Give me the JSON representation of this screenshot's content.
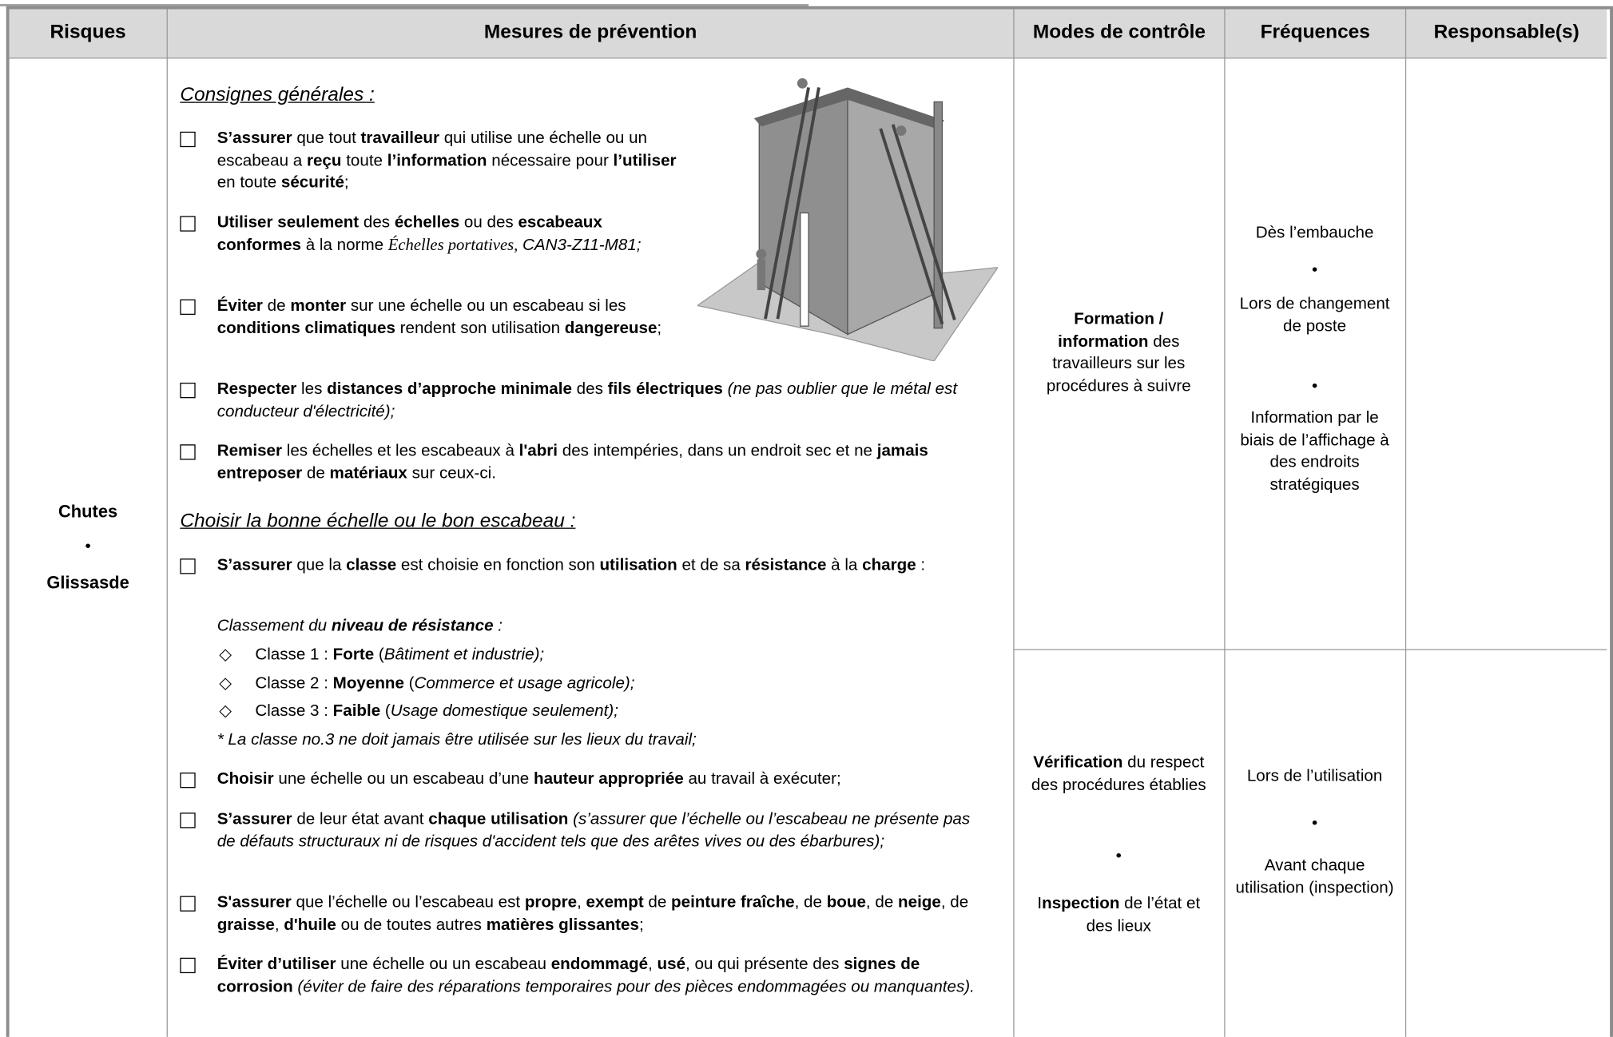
{
  "header": {
    "columns": [
      "Risques",
      "Mesures de prévention",
      "Modes de contrôle",
      "Fréquences",
      "Responsable(s)"
    ]
  },
  "risks": [
    "Chutes",
    "Glissasde"
  ],
  "measures": {
    "sections": [
      {
        "heading": "Consignes générales :",
        "items": [
          {
            "runs": [
              {
                "text": "S’assurer",
                "bold": true
              },
              {
                "text": " que tout "
              },
              {
                "text": "travailleur",
                "bold": true
              },
              {
                "text": " qui utilise une échelle ou un escabeau a "
              },
              {
                "text": "reçu",
                "bold": true
              },
              {
                "text": " toute "
              },
              {
                "text": "l’information",
                "bold": true
              },
              {
                "text": " nécessaire pour "
              },
              {
                "text": "l’utiliser",
                "bold": true
              },
              {
                "text": " en toute "
              },
              {
                "text": "sécurité",
                "bold": true
              },
              {
                "text": ";"
              }
            ]
          },
          {
            "runs": [
              {
                "text": "Utiliser seulement",
                "bold": true
              },
              {
                "text": " des "
              },
              {
                "text": "échelles",
                "bold": true
              },
              {
                "text": " ou des "
              },
              {
                "text": "escabeaux conformes",
                "bold": true
              },
              {
                "text": " à la norme "
              },
              {
                "text": "Échelles portatives,",
                "italic": true,
                "serif": true
              },
              {
                "text": " CAN3-Z11-M81;",
                "italic": true
              }
            ]
          },
          {
            "runs": [
              {
                "text": "Éviter",
                "bold": true
              },
              {
                "text": " de "
              },
              {
                "text": "monter",
                "bold": true
              },
              {
                "text": " sur une échelle ou un escabeau si les "
              },
              {
                "text": "conditions climatiques",
                "bold": true
              },
              {
                "text": " rendent son utilisation "
              },
              {
                "text": "dangereuse",
                "bold": true
              },
              {
                "text": ";"
              }
            ]
          },
          {
            "runs": [
              {
                "text": "Respecter",
                "bold": true
              },
              {
                "text": " les "
              },
              {
                "text": "distances d’approche minimale",
                "bold": true
              },
              {
                "text": " des "
              },
              {
                "text": "fils électriques",
                "bold": true
              },
              {
                "text": " (ne pas oublier que le métal est conducteur d'électricité);",
                "italic": true
              }
            ]
          },
          {
            "runs": [
              {
                "text": "Remiser",
                "bold": true
              },
              {
                "text": " les échelles et les escabeaux à "
              },
              {
                "text": "l'abri",
                "bold": true
              },
              {
                "text": " des intempéries, dans un endroit sec et ne "
              },
              {
                "text": "jamais entreposer",
                "bold": true
              },
              {
                "text": " de "
              },
              {
                "text": "matériaux",
                "bold": true
              },
              {
                "text": " sur ceux-ci."
              }
            ]
          }
        ]
      },
      {
        "heading": "Choisir la bonne échelle ou le bon escabeau :",
        "items": [
          {
            "runs": [
              {
                "text": "S’assurer",
                "bold": true
              },
              {
                "text": " que la "
              },
              {
                "text": "classe",
                "bold": true
              },
              {
                "text": " est choisie en fonction son "
              },
              {
                "text": "utilisation",
                "bold": true
              },
              {
                "text": " et de sa "
              },
              {
                "text": "résistance",
                "bold": true
              },
              {
                "text": " à la "
              },
              {
                "text": "charge",
                "bold": true
              },
              {
                "text": " :"
              }
            ]
          },
          {
            "runs": [
              {
                "text": "Choisir",
                "bold": true
              },
              {
                "text": " une échelle ou un escabeau d’une "
              },
              {
                "text": "hauteur appropriée",
                "bold": true
              },
              {
                "text": " au travail à exécuter;"
              }
            ]
          },
          {
            "runs": [
              {
                "text": "S’assurer",
                "bold": true
              },
              {
                "text": " de leur état avant "
              },
              {
                "text": "chaque utilisation",
                "bold": true
              },
              {
                "text": " (s’assurer que l’échelle ou l’escabeau ne présente pas de défauts structuraux ni de risques d'accident  tels que des arêtes vives ou des ébarbures);",
                "italic": true
              }
            ]
          },
          {
            "runs": [
              {
                "text": "S'assurer",
                "bold": true
              },
              {
                "text": " que l’échelle ou l’escabeau est "
              },
              {
                "text": "propre",
                "bold": true
              },
              {
                "text": ", "
              },
              {
                "text": "exempt",
                "bold": true
              },
              {
                "text": " de "
              },
              {
                "text": "peinture fraîche",
                "bold": true
              },
              {
                "text": ", de "
              },
              {
                "text": "boue",
                "bold": true
              },
              {
                "text": ", de "
              },
              {
                "text": "neige",
                "bold": true
              },
              {
                "text": ", de "
              },
              {
                "text": "graisse",
                "bold": true
              },
              {
                "text": ", "
              },
              {
                "text": "d'huile",
                "bold": true
              },
              {
                "text": " ou de toutes autres "
              },
              {
                "text": "matières glissantes",
                "bold": true
              },
              {
                "text": ";"
              }
            ]
          },
          {
            "runs": [
              {
                "text": "Éviter d’utiliser",
                "bold": true
              },
              {
                "text": " une échelle ou un escabeau "
              },
              {
                "text": "endommagé",
                "bold": true
              },
              {
                "text": ", "
              },
              {
                "text": "usé",
                "bold": true
              },
              {
                "text": ", ou qui présente des "
              },
              {
                "text": "signes de corrosion",
                "bold": true
              },
              {
                "text": " (éviter de faire des réparations temporaires pour des pièces endommagées ou manquantes).",
                "italic": true
              }
            ]
          }
        ],
        "classification": {
          "intro": {
            "runs": [
              {
                "text": "Classement du ",
                "italic": true
              },
              {
                "text": "niveau de résistance",
                "bold": true,
                "italic": true
              },
              {
                "text": " :",
                "italic": true
              }
            ]
          },
          "classes": [
            {
              "runs": [
                {
                  "text": "Classe 1 : "
                },
                {
                  "text": "Forte",
                  "bold": true
                },
                {
                  "text": " ("
                },
                {
                  "text": "Bâtiment et industrie);",
                  "italic": true
                }
              ]
            },
            {
              "runs": [
                {
                  "text": "Classe 2 : "
                },
                {
                  "text": "Moyenne",
                  "bold": true
                },
                {
                  "text": " ("
                },
                {
                  "text": "Commerce et usage agricole);",
                  "italic": true
                }
              ]
            },
            {
              "runs": [
                {
                  "text": "Classe 3 : "
                },
                {
                  "text": "Faible",
                  "bold": true
                },
                {
                  "text": " ("
                },
                {
                  "text": "Usage domestique seulement);",
                  "italic": true
                }
              ]
            }
          ],
          "note": "* La classe no.3 ne doit jamais être utilisée sur les lieux du travail;"
        }
      }
    ]
  },
  "rows": [
    {
      "control": [
        {
          "runs": [
            {
              "text": "Formation / information",
              "bold": true
            },
            {
              "text": " des travailleurs sur les procédures à suivre"
            }
          ]
        }
      ],
      "frequencies": [
        "Dès l’embauche",
        "Lors de changement de poste",
        "Information par le biais de l’affichage à des endroits stratégiques"
      ]
    },
    {
      "control": [
        {
          "runs": [
            {
              "text": "Vérification",
              "bold": true
            },
            {
              "text": " du respect des procédures établies"
            }
          ]
        },
        {
          "runs": [
            {
              "text": "I"
            },
            {
              "text": "nspection",
              "bold": true
            },
            {
              "text": " de l’état et des lieux"
            }
          ]
        }
      ],
      "frequencies": [
        "Lors de l’utilisation",
        "Avant chaque utilisation (inspection)"
      ]
    }
  ]
}
